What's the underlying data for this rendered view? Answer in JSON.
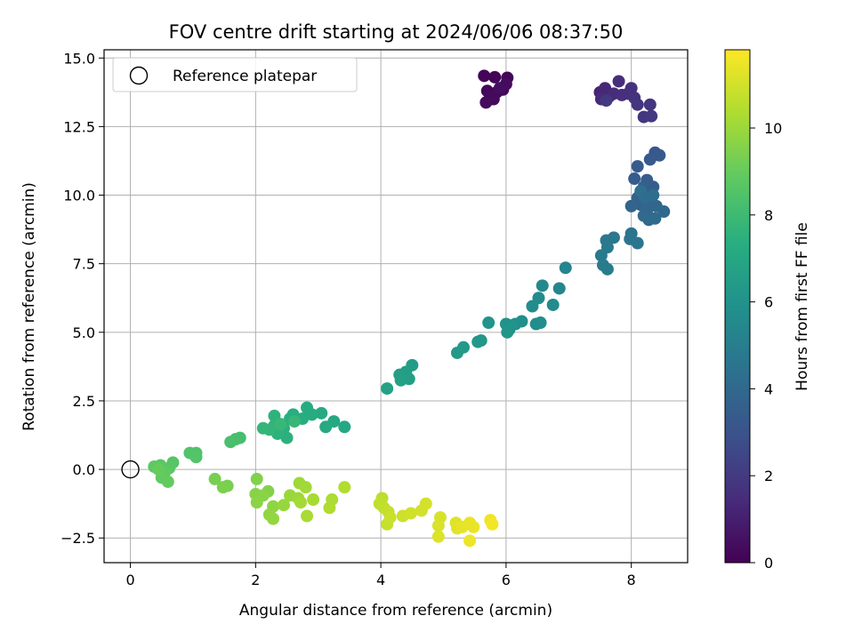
{
  "chart_data": {
    "type": "scatter",
    "title": "FOV centre drift starting at 2024/06/06 08:37:50",
    "xlabel": "Angular distance from reference (arcmin)",
    "ylabel": "Rotation from reference (arcmin)",
    "xlim": [
      -0.42,
      8.9
    ],
    "ylim": [
      -3.4,
      15.3
    ],
    "xticks": [
      0,
      2,
      4,
      6,
      8
    ],
    "xtick_labels": [
      "0",
      "2",
      "4",
      "6",
      "8"
    ],
    "yticks": [
      -2.5,
      0,
      2.5,
      5,
      7.5,
      10,
      12.5,
      15
    ],
    "ytick_labels": [
      "−2.5",
      "0.0",
      "2.5",
      "5.0",
      "7.5",
      "10.0",
      "12.5",
      "15.0"
    ],
    "grid": true,
    "legend": {
      "placement": "top-left",
      "entries": [
        "Reference platepar"
      ]
    },
    "reference_point": {
      "x": 0,
      "y": 0
    },
    "colorbar": {
      "label": "Hours from first FF file",
      "min": 0,
      "max": 11.8,
      "ticks": [
        0,
        2,
        4,
        6,
        8,
        10
      ],
      "tick_labels": [
        "0",
        "2",
        "4",
        "6",
        "8",
        "10"
      ],
      "colormap": "viridis"
    },
    "points": [
      {
        "x": 5.65,
        "y": 14.35,
        "c": 0.1
      },
      {
        "x": 5.82,
        "y": 14.3,
        "c": 0.1
      },
      {
        "x": 6.02,
        "y": 14.28,
        "c": 0.15
      },
      {
        "x": 5.7,
        "y": 13.8,
        "c": 0.2
      },
      {
        "x": 5.85,
        "y": 13.75,
        "c": 0.2
      },
      {
        "x": 5.95,
        "y": 13.85,
        "c": 0.25
      },
      {
        "x": 5.75,
        "y": 13.6,
        "c": 0.3
      },
      {
        "x": 5.8,
        "y": 13.5,
        "c": 0.3
      },
      {
        "x": 5.68,
        "y": 13.38,
        "c": 0.35
      },
      {
        "x": 6.0,
        "y": 14.05,
        "c": 0.35
      },
      {
        "x": 5.9,
        "y": 13.9,
        "c": 0.4
      },
      {
        "x": 7.5,
        "y": 13.75,
        "c": 1.2
      },
      {
        "x": 7.58,
        "y": 13.9,
        "c": 1.3
      },
      {
        "x": 7.65,
        "y": 13.6,
        "c": 1.35
      },
      {
        "x": 7.52,
        "y": 13.5,
        "c": 1.4
      },
      {
        "x": 7.72,
        "y": 13.7,
        "c": 1.45
      },
      {
        "x": 7.8,
        "y": 14.15,
        "c": 1.5
      },
      {
        "x": 7.85,
        "y": 13.65,
        "c": 1.55
      },
      {
        "x": 7.95,
        "y": 13.7,
        "c": 1.6
      },
      {
        "x": 8.0,
        "y": 13.9,
        "c": 1.65
      },
      {
        "x": 8.05,
        "y": 13.55,
        "c": 1.7
      },
      {
        "x": 8.1,
        "y": 13.3,
        "c": 1.75
      },
      {
        "x": 8.2,
        "y": 12.85,
        "c": 1.8
      },
      {
        "x": 8.3,
        "y": 13.3,
        "c": 1.85
      },
      {
        "x": 8.32,
        "y": 12.88,
        "c": 1.9
      },
      {
        "x": 7.6,
        "y": 13.45,
        "c": 1.95
      },
      {
        "x": 8.38,
        "y": 11.55,
        "c": 3.2
      },
      {
        "x": 8.45,
        "y": 11.45,
        "c": 3.25
      },
      {
        "x": 8.3,
        "y": 11.3,
        "c": 3.3
      },
      {
        "x": 8.1,
        "y": 11.05,
        "c": 3.35
      },
      {
        "x": 8.05,
        "y": 10.6,
        "c": 3.4
      },
      {
        "x": 8.25,
        "y": 10.55,
        "c": 3.45
      },
      {
        "x": 8.35,
        "y": 10.3,
        "c": 3.5
      },
      {
        "x": 8.3,
        "y": 10.1,
        "c": 3.55
      },
      {
        "x": 8.2,
        "y": 10.3,
        "c": 3.6
      },
      {
        "x": 8.1,
        "y": 9.9,
        "c": 3.65
      },
      {
        "x": 8.3,
        "y": 9.8,
        "c": 3.7
      },
      {
        "x": 8.15,
        "y": 9.65,
        "c": 3.75
      },
      {
        "x": 8.0,
        "y": 9.6,
        "c": 3.8
      },
      {
        "x": 8.25,
        "y": 9.45,
        "c": 3.85
      },
      {
        "x": 8.4,
        "y": 9.6,
        "c": 3.9
      },
      {
        "x": 8.52,
        "y": 9.4,
        "c": 3.95
      },
      {
        "x": 8.2,
        "y": 9.25,
        "c": 4.0
      },
      {
        "x": 8.28,
        "y": 9.1,
        "c": 4.05
      },
      {
        "x": 8.38,
        "y": 9.15,
        "c": 4.1
      },
      {
        "x": 8.22,
        "y": 9.9,
        "c": 4.15
      },
      {
        "x": 8.35,
        "y": 10.0,
        "c": 4.2
      },
      {
        "x": 8.15,
        "y": 10.15,
        "c": 4.25
      },
      {
        "x": 8.0,
        "y": 8.6,
        "c": 4.5
      },
      {
        "x": 7.98,
        "y": 8.4,
        "c": 4.55
      },
      {
        "x": 8.1,
        "y": 8.25,
        "c": 4.6
      },
      {
        "x": 7.72,
        "y": 8.45,
        "c": 4.65
      },
      {
        "x": 7.6,
        "y": 8.35,
        "c": 4.7
      },
      {
        "x": 7.62,
        "y": 8.1,
        "c": 4.75
      },
      {
        "x": 7.52,
        "y": 7.8,
        "c": 4.8
      },
      {
        "x": 7.55,
        "y": 7.45,
        "c": 4.85
      },
      {
        "x": 7.62,
        "y": 7.3,
        "c": 4.9
      },
      {
        "x": 6.95,
        "y": 7.35,
        "c": 5.3
      },
      {
        "x": 6.85,
        "y": 6.6,
        "c": 5.4
      },
      {
        "x": 6.58,
        "y": 6.7,
        "c": 5.5
      },
      {
        "x": 6.75,
        "y": 6.0,
        "c": 5.55
      },
      {
        "x": 6.52,
        "y": 6.25,
        "c": 5.6
      },
      {
        "x": 6.42,
        "y": 5.95,
        "c": 5.65
      },
      {
        "x": 6.48,
        "y": 5.3,
        "c": 5.7
      },
      {
        "x": 6.55,
        "y": 5.35,
        "c": 5.75
      },
      {
        "x": 6.25,
        "y": 5.4,
        "c": 5.8
      },
      {
        "x": 6.15,
        "y": 5.3,
        "c": 5.85
      },
      {
        "x": 6.05,
        "y": 5.1,
        "c": 5.9
      },
      {
        "x": 6.0,
        "y": 5.3,
        "c": 5.95
      },
      {
        "x": 6.08,
        "y": 5.25,
        "c": 6.0
      },
      {
        "x": 5.72,
        "y": 5.35,
        "c": 6.05
      },
      {
        "x": 6.02,
        "y": 5.0,
        "c": 6.1
      },
      {
        "x": 5.6,
        "y": 4.7,
        "c": 6.2
      },
      {
        "x": 5.55,
        "y": 4.65,
        "c": 6.25
      },
      {
        "x": 5.32,
        "y": 4.45,
        "c": 6.3
      },
      {
        "x": 5.22,
        "y": 4.25,
        "c": 6.35
      },
      {
        "x": 4.5,
        "y": 3.8,
        "c": 6.45
      },
      {
        "x": 4.4,
        "y": 3.55,
        "c": 6.5
      },
      {
        "x": 4.3,
        "y": 3.45,
        "c": 6.55
      },
      {
        "x": 4.45,
        "y": 3.3,
        "c": 6.6
      },
      {
        "x": 4.32,
        "y": 3.25,
        "c": 6.65
      },
      {
        "x": 4.1,
        "y": 2.95,
        "c": 6.7
      },
      {
        "x": 3.42,
        "y": 1.55,
        "c": 7.0
      },
      {
        "x": 3.25,
        "y": 1.75,
        "c": 7.05
      },
      {
        "x": 3.12,
        "y": 1.55,
        "c": 7.1
      },
      {
        "x": 3.05,
        "y": 2.05,
        "c": 7.15
      },
      {
        "x": 2.9,
        "y": 2.0,
        "c": 7.2
      },
      {
        "x": 2.82,
        "y": 2.25,
        "c": 7.25
      },
      {
        "x": 2.75,
        "y": 1.85,
        "c": 7.3
      },
      {
        "x": 2.6,
        "y": 2.0,
        "c": 7.35
      },
      {
        "x": 2.55,
        "y": 1.85,
        "c": 7.4
      },
      {
        "x": 2.45,
        "y": 1.5,
        "c": 7.45
      },
      {
        "x": 2.5,
        "y": 1.15,
        "c": 7.5
      },
      {
        "x": 2.35,
        "y": 1.3,
        "c": 7.55
      },
      {
        "x": 2.3,
        "y": 1.95,
        "c": 7.6
      },
      {
        "x": 2.3,
        "y": 1.6,
        "c": 7.65
      },
      {
        "x": 2.22,
        "y": 1.45,
        "c": 7.7
      },
      {
        "x": 2.12,
        "y": 1.5,
        "c": 7.75
      },
      {
        "x": 2.62,
        "y": 1.75,
        "c": 7.8
      },
      {
        "x": 2.4,
        "y": 1.65,
        "c": 7.85
      },
      {
        "x": 1.75,
        "y": 1.15,
        "c": 8.2
      },
      {
        "x": 1.68,
        "y": 1.1,
        "c": 8.25
      },
      {
        "x": 1.6,
        "y": 1.0,
        "c": 8.3
      },
      {
        "x": 1.05,
        "y": 0.6,
        "c": 8.45
      },
      {
        "x": 0.95,
        "y": 0.6,
        "c": 8.5
      },
      {
        "x": 1.05,
        "y": 0.45,
        "c": 8.55
      },
      {
        "x": 0.68,
        "y": 0.25,
        "c": 8.65
      },
      {
        "x": 0.62,
        "y": 0.05,
        "c": 8.7
      },
      {
        "x": 0.48,
        "y": 0.15,
        "c": 8.75
      },
      {
        "x": 0.38,
        "y": 0.1,
        "c": 8.8
      },
      {
        "x": 0.55,
        "y": -0.1,
        "c": 8.85
      },
      {
        "x": 0.5,
        "y": -0.3,
        "c": 8.9
      },
      {
        "x": 0.6,
        "y": -0.45,
        "c": 8.95
      },
      {
        "x": 0.45,
        "y": 0.0,
        "c": 9.0
      },
      {
        "x": 1.35,
        "y": -0.35,
        "c": 9.3
      },
      {
        "x": 1.55,
        "y": -0.6,
        "c": 9.35
      },
      {
        "x": 1.48,
        "y": -0.65,
        "c": 9.4
      },
      {
        "x": 2.02,
        "y": -0.35,
        "c": 9.5
      },
      {
        "x": 2.2,
        "y": -0.8,
        "c": 9.55
      },
      {
        "x": 2.0,
        "y": -0.9,
        "c": 9.6
      },
      {
        "x": 2.12,
        "y": -0.95,
        "c": 9.65
      },
      {
        "x": 2.02,
        "y": -1.2,
        "c": 9.7
      },
      {
        "x": 2.28,
        "y": -1.35,
        "c": 9.75
      },
      {
        "x": 2.22,
        "y": -1.65,
        "c": 9.8
      },
      {
        "x": 2.28,
        "y": -1.8,
        "c": 9.85
      },
      {
        "x": 2.45,
        "y": -1.3,
        "c": 9.9
      },
      {
        "x": 2.55,
        "y": -0.95,
        "c": 9.95
      },
      {
        "x": 2.68,
        "y": -1.05,
        "c": 10.0
      },
      {
        "x": 2.7,
        "y": -0.5,
        "c": 10.05
      },
      {
        "x": 2.8,
        "y": -0.65,
        "c": 10.1
      },
      {
        "x": 2.72,
        "y": -1.2,
        "c": 10.15
      },
      {
        "x": 2.92,
        "y": -1.1,
        "c": 10.2
      },
      {
        "x": 2.82,
        "y": -1.7,
        "c": 10.25
      },
      {
        "x": 3.22,
        "y": -1.1,
        "c": 10.3
      },
      {
        "x": 3.18,
        "y": -1.4,
        "c": 10.35
      },
      {
        "x": 3.42,
        "y": -0.65,
        "c": 10.4
      },
      {
        "x": 4.02,
        "y": -1.05,
        "c": 10.6
      },
      {
        "x": 3.98,
        "y": -1.25,
        "c": 10.65
      },
      {
        "x": 4.05,
        "y": -1.4,
        "c": 10.7
      },
      {
        "x": 4.12,
        "y": -1.55,
        "c": 10.75
      },
      {
        "x": 4.1,
        "y": -2.0,
        "c": 10.8
      },
      {
        "x": 4.15,
        "y": -1.75,
        "c": 10.85
      },
      {
        "x": 4.35,
        "y": -1.7,
        "c": 10.9
      },
      {
        "x": 4.48,
        "y": -1.6,
        "c": 10.95
      },
      {
        "x": 4.65,
        "y": -1.5,
        "c": 11.0
      },
      {
        "x": 4.72,
        "y": -1.25,
        "c": 11.05
      },
      {
        "x": 4.95,
        "y": -1.75,
        "c": 11.1
      },
      {
        "x": 4.92,
        "y": -2.05,
        "c": 11.15
      },
      {
        "x": 4.92,
        "y": -2.45,
        "c": 11.2
      },
      {
        "x": 5.2,
        "y": -1.95,
        "c": 11.25
      },
      {
        "x": 5.22,
        "y": -2.15,
        "c": 11.3
      },
      {
        "x": 5.3,
        "y": -2.1,
        "c": 11.35
      },
      {
        "x": 5.42,
        "y": -1.95,
        "c": 11.4
      },
      {
        "x": 5.48,
        "y": -2.1,
        "c": 11.45
      },
      {
        "x": 5.42,
        "y": -2.6,
        "c": 11.5
      },
      {
        "x": 5.75,
        "y": -1.85,
        "c": 11.55
      },
      {
        "x": 5.78,
        "y": -2.0,
        "c": 11.6
      }
    ]
  }
}
